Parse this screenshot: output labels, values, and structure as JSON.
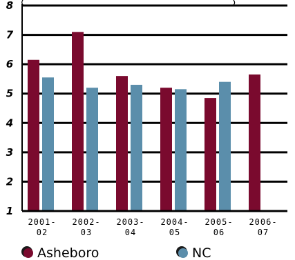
{
  "chart_data": {
    "type": "bar",
    "categories": [
      [
        "2001-",
        "02"
      ],
      [
        "2002-",
        "03"
      ],
      [
        "2003-",
        "04"
      ],
      [
        "2004-",
        "05"
      ],
      [
        "2005-",
        "06"
      ],
      [
        "2006-",
        "07"
      ]
    ],
    "series": [
      {
        "name": "Asheboro",
        "color": "#7a0a2e",
        "values": [
          6.15,
          7.1,
          5.6,
          5.2,
          4.85,
          5.65
        ]
      },
      {
        "name": "NC",
        "color": "#5b8eab",
        "values": [
          5.55,
          5.2,
          5.3,
          5.15,
          5.4,
          null
        ]
      }
    ],
    "yticks": [
      "1",
      "2",
      "3",
      "4",
      "5",
      "6",
      "7",
      "8"
    ],
    "ylim": [
      1,
      8
    ],
    "grid": true,
    "legend_position": "bottom"
  }
}
